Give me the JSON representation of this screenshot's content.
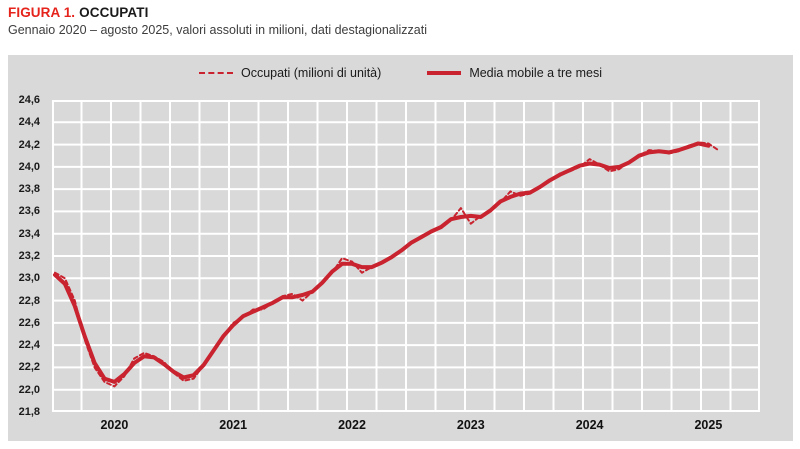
{
  "header": {
    "figure_label": "FIGURA 1.",
    "title": "OCCUPATI",
    "subtitle": "Gennaio 2020 – agosto 2025, valori assoluti in milioni, dati destagionalizzati"
  },
  "legend": [
    {
      "label": "Occupati (milioni di unità)",
      "style": "dashed"
    },
    {
      "label": "Media mobile a tre mesi",
      "style": "solid"
    }
  ],
  "colors": {
    "line_red": "#c8232e",
    "title_red": "#e5231b",
    "panel_bg": "#d9d9d9",
    "grid_white": "#ffffff",
    "text_dark": "#1a1a1a"
  },
  "chart_data": {
    "type": "line",
    "title": "OCCUPATI",
    "subtitle": "Gennaio 2020 – agosto 2025, valori assoluti in milioni, dati destagionalizzati",
    "x_monthly_start": "2020-01",
    "x_monthly_end": "2025-08",
    "x_tick_labels": [
      "2020",
      "2021",
      "2022",
      "2023",
      "2024",
      "2025"
    ],
    "ylim": [
      21.8,
      24.6
    ],
    "y_tick_step": 0.2,
    "y_tick_labels": [
      "24,6",
      "24,4",
      "24,2",
      "24,0",
      "23,8",
      "23,6",
      "23,4",
      "23,2",
      "23,0",
      "22,8",
      "22,6",
      "22,4",
      "22,2",
      "22,0",
      "21,8"
    ],
    "grid": true,
    "legend_position": "top",
    "series": [
      {
        "name": "Occupati (milioni di unità)",
        "style": "dashed",
        "values": [
          23.05,
          23.0,
          22.8,
          22.45,
          22.2,
          22.07,
          22.03,
          22.12,
          22.28,
          22.33,
          22.3,
          22.25,
          22.15,
          22.08,
          22.1,
          22.22,
          22.35,
          22.48,
          22.6,
          22.65,
          22.72,
          22.72,
          22.78,
          22.84,
          22.86,
          22.8,
          22.88,
          22.95,
          23.05,
          23.18,
          23.15,
          23.05,
          23.1,
          23.14,
          23.18,
          23.25,
          23.32,
          23.38,
          23.42,
          23.45,
          23.52,
          23.63,
          23.49,
          23.56,
          23.6,
          23.68,
          23.78,
          23.74,
          23.76,
          23.82,
          23.88,
          23.94,
          23.96,
          24.0,
          24.07,
          24.02,
          23.96,
          23.98,
          24.05,
          24.1,
          24.15,
          24.14,
          24.12,
          24.14,
          24.19,
          24.22,
          24.21,
          24.15
        ]
      },
      {
        "name": "Media mobile a tre mesi",
        "style": "solid",
        "derived": "media mobile a tre mesi (centrata) della serie Occupati",
        "values": [
          23.03,
          22.95,
          22.75,
          22.48,
          22.24,
          22.1,
          22.07,
          22.14,
          22.24,
          22.3,
          22.29,
          22.23,
          22.16,
          22.11,
          22.13,
          22.22,
          22.35,
          22.48,
          22.58,
          22.66,
          22.7,
          22.74,
          22.78,
          22.83,
          22.83,
          22.85,
          22.88,
          22.96,
          23.06,
          23.13,
          23.13,
          23.1,
          23.1,
          23.14,
          23.19,
          23.25,
          23.32,
          23.37,
          23.42,
          23.46,
          23.53,
          23.55,
          23.56,
          23.55,
          23.61,
          23.69,
          23.73,
          23.76,
          23.77,
          23.82,
          23.88,
          23.93,
          23.97,
          24.01,
          24.03,
          24.02,
          23.99,
          24.0,
          24.04,
          24.1,
          24.13,
          24.14,
          24.13,
          24.15,
          24.18,
          24.21,
          24.19
        ]
      }
    ]
  }
}
